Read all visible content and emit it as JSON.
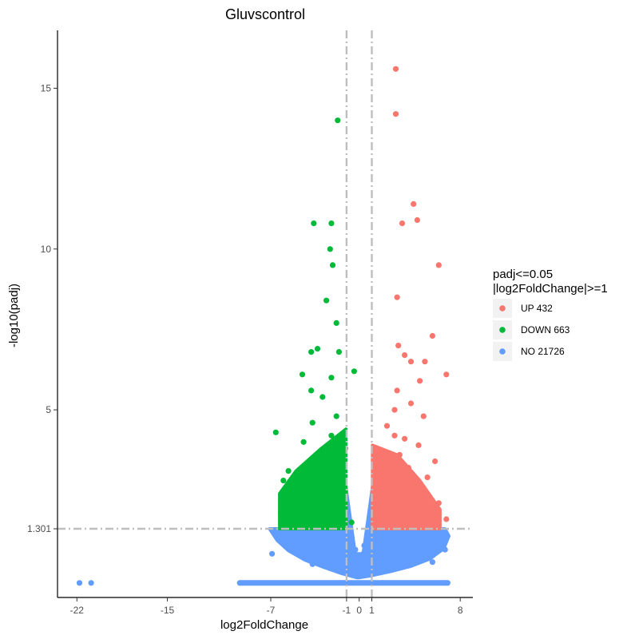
{
  "chart_data": {
    "type": "scatter",
    "title": "Gluvscontrol",
    "xlabel": "log2FoldChange",
    "ylabel": "-log10(padj)",
    "x_ticks": [
      {
        "value": -22,
        "label": "-22"
      },
      {
        "value": -15,
        "label": "-15"
      },
      {
        "value": -7,
        "label": "-7"
      },
      {
        "value": -1,
        "label": "-1"
      },
      {
        "value": 0,
        "label": "0"
      },
      {
        "value": 1,
        "label": "1"
      },
      {
        "value": 8,
        "label": "8"
      }
    ],
    "y_ticks": [
      {
        "value": 1.301,
        "label": "1.301"
      },
      {
        "value": 5,
        "label": "5"
      },
      {
        "value": 10,
        "label": "10"
      },
      {
        "value": 15,
        "label": "15"
      }
    ],
    "xlim": [
      -23.5,
      9
    ],
    "ylim": [
      -2,
      16.8
    ],
    "threshold_lines": {
      "x": [
        -1,
        1
      ],
      "y": 1.301,
      "color": "#BEBEBE"
    },
    "grid": false,
    "legend": {
      "title_line1": "padj<=0.05",
      "title_line2": "|log2FoldChange|>=1",
      "position": "right",
      "items": [
        {
          "label": "UP 432",
          "color": "#F8766D"
        },
        {
          "label": "DOWN 663",
          "color": "#00BA38"
        },
        {
          "label": "NO 21726",
          "color": "#619CFF"
        }
      ]
    },
    "series": [
      {
        "name": "UP 432",
        "color": "#F8766D",
        "points": [
          [
            2.9,
            15.6
          ],
          [
            2.9,
            14.2
          ],
          [
            4.3,
            11.4
          ],
          [
            4.6,
            10.9
          ],
          [
            3.4,
            10.8
          ],
          [
            6.3,
            9.5
          ],
          [
            3.0,
            8.5
          ],
          [
            5.8,
            7.3
          ],
          [
            3.1,
            7.0
          ],
          [
            3.6,
            6.7
          ],
          [
            4.1,
            6.5
          ],
          [
            6.9,
            6.1
          ],
          [
            5.2,
            6.5
          ],
          [
            4.8,
            5.9
          ],
          [
            3.0,
            5.6
          ],
          [
            2.8,
            5.0
          ],
          [
            4.1,
            5.2
          ],
          [
            5.1,
            4.8
          ],
          [
            2.2,
            4.5
          ],
          [
            2.8,
            4.2
          ],
          [
            3.6,
            4.1
          ],
          [
            4.7,
            3.9
          ],
          [
            6.0,
            3.4
          ],
          [
            3.2,
            3.6
          ],
          [
            3.9,
            3.2
          ],
          [
            5.4,
            2.9
          ],
          [
            2.5,
            3.0
          ],
          [
            3.0,
            2.7
          ],
          [
            4.5,
            2.5
          ],
          [
            6.3,
            2.1
          ],
          [
            1.6,
            2.4
          ],
          [
            2.2,
            2.0
          ],
          [
            3.5,
            1.9
          ],
          [
            5.0,
            1.7
          ],
          [
            6.9,
            1.6
          ],
          [
            1.4,
            1.8
          ]
        ]
      },
      {
        "name": "DOWN 663",
        "color": "#00BA38",
        "points": [
          [
            -1.7,
            14.0
          ],
          [
            -3.6,
            10.8
          ],
          [
            -2.2,
            10.8
          ],
          [
            -2.3,
            10.0
          ],
          [
            -2.1,
            9.5
          ],
          [
            -2.6,
            8.4
          ],
          [
            -1.8,
            7.7
          ],
          [
            -3.8,
            6.8
          ],
          [
            -3.3,
            6.9
          ],
          [
            -1.6,
            6.8
          ],
          [
            -0.4,
            6.2
          ],
          [
            -4.5,
            6.1
          ],
          [
            -2.2,
            6.0
          ],
          [
            -3.8,
            5.6
          ],
          [
            -2.9,
            5.4
          ],
          [
            -6.6,
            4.3
          ],
          [
            -3.7,
            4.6
          ],
          [
            -1.8,
            4.8
          ],
          [
            -4.4,
            4.0
          ],
          [
            -2.2,
            4.2
          ],
          [
            -1.1,
            3.8
          ],
          [
            -5.6,
            3.1
          ],
          [
            -3.3,
            3.5
          ],
          [
            -6.0,
            2.8
          ],
          [
            -4.7,
            2.6
          ],
          [
            -2.7,
            2.9
          ],
          [
            -1.6,
            2.6
          ],
          [
            -5.3,
            2.2
          ],
          [
            -3.5,
            2.1
          ],
          [
            -6.2,
            1.8
          ],
          [
            -2.4,
            1.8
          ],
          [
            -1.3,
            2.1
          ],
          [
            -4.1,
            1.6
          ],
          [
            -0.6,
            1.5
          ]
        ]
      },
      {
        "name": "NO 21726",
        "color": "#619CFF",
        "points": [
          [
            -21.8,
            -1.3
          ],
          [
            -20.9,
            -1.3
          ],
          [
            -9.4,
            -1.3
          ],
          [
            7.0,
            -1.3
          ],
          [
            -6.4,
            0.9
          ],
          [
            -4.8,
            0.4
          ],
          [
            -2.9,
            1.1
          ],
          [
            -1.3,
            0.7
          ],
          [
            -0.7,
            1.2
          ],
          [
            -0.3,
            0.3
          ],
          [
            0.4,
            0.5
          ],
          [
            0.8,
            1.0
          ],
          [
            1.7,
            0.8
          ],
          [
            3.4,
            0.5
          ],
          [
            5.4,
            0.7
          ],
          [
            6.8,
            0.3
          ],
          [
            -6.9,
            0.1
          ],
          [
            -3.7,
            -0.4
          ],
          [
            0.0,
            -0.2
          ],
          [
            2.6,
            -0.1
          ],
          [
            5.8,
            -0.3
          ]
        ]
      }
    ],
    "regions": [
      {
        "name": "NO 21726",
        "shape": "blob",
        "color": "#619CFF",
        "polygon": [
          [
            -7.1,
            1.3
          ],
          [
            -6.5,
            0.75
          ],
          [
            -5.6,
            0.25
          ],
          [
            -4.3,
            -0.2
          ],
          [
            -2.8,
            -0.55
          ],
          [
            -1.4,
            -0.85
          ],
          [
            -0.2,
            -1.05
          ],
          [
            0.0,
            -1.05
          ],
          [
            1.0,
            -0.95
          ],
          [
            2.5,
            -0.75
          ],
          [
            4.1,
            -0.5
          ],
          [
            5.6,
            -0.15
          ],
          [
            6.7,
            0.35
          ],
          [
            7.1,
            0.95
          ],
          [
            6.8,
            1.3
          ],
          [
            1.0,
            1.3
          ],
          [
            0.25,
            0.1
          ],
          [
            -0.25,
            0.1
          ],
          [
            -1.0,
            1.3
          ]
        ]
      },
      {
        "name": "NO 21726",
        "shape": "wedge",
        "color": "#619CFF",
        "polygon": [
          [
            -1.05,
            2.6
          ],
          [
            -0.08,
            -0.9
          ],
          [
            0.08,
            -0.9
          ],
          [
            1.05,
            2.6
          ],
          [
            0.9,
            1.3
          ],
          [
            0.15,
            -0.3
          ],
          [
            -0.15,
            -0.3
          ],
          [
            -0.9,
            1.3
          ]
        ]
      },
      {
        "name": "NO 21726",
        "shape": "band",
        "color": "#619CFF",
        "x_range": [
          -9.4,
          7.0
        ],
        "y": -1.3
      },
      {
        "name": "DOWN 663",
        "shape": "cluster",
        "color": "#00BA38",
        "polygon": [
          [
            -6.3,
            1.3
          ],
          [
            -6.3,
            2.4
          ],
          [
            -5.0,
            3.1
          ],
          [
            -3.0,
            3.8
          ],
          [
            -1.05,
            4.4
          ],
          [
            -1.05,
            1.3
          ]
        ]
      },
      {
        "name": "UP 432",
        "shape": "cluster",
        "color": "#F8766D",
        "polygon": [
          [
            1.05,
            1.3
          ],
          [
            1.05,
            3.9
          ],
          [
            3.0,
            3.6
          ],
          [
            4.8,
            2.8
          ],
          [
            6.4,
            1.9
          ],
          [
            6.4,
            1.3
          ]
        ]
      }
    ]
  }
}
